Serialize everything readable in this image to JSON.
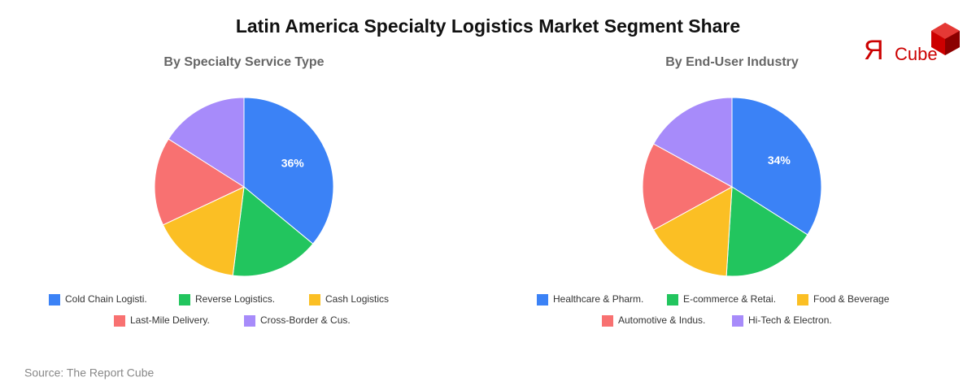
{
  "title": "Latin America Specialty Logistics Market Segment Share",
  "source": "Source: The Report Cube",
  "logo": {
    "mark": "Я",
    "text": "Cube"
  },
  "chart_data": [
    {
      "type": "pie",
      "title": "By Specialty Service Type",
      "categories": [
        "Cold Chain Logisti.",
        "Reverse Logistics.",
        "Cash Logistics",
        "Last-Mile Delivery.",
        "Cross-Border & Cus."
      ],
      "values": [
        36,
        16,
        16,
        16,
        16
      ],
      "value_labels": [
        "36%",
        null,
        null,
        null,
        null
      ],
      "colors": [
        "#3b82f6",
        "#22c55e",
        "#fbbf24",
        "#f87171",
        "#a78bfa"
      ],
      "legend": "bottom"
    },
    {
      "type": "pie",
      "title": "By End-User Industry",
      "categories": [
        "Healthcare & Pharm.",
        "E-commerce & Retai.",
        "Food & Beverage",
        "Automotive & Indus.",
        "Hi-Tech & Electron."
      ],
      "values": [
        34,
        17,
        16,
        16,
        17
      ],
      "value_labels": [
        "34%",
        null,
        null,
        null,
        null
      ],
      "colors": [
        "#3b82f6",
        "#22c55e",
        "#fbbf24",
        "#f87171",
        "#a78bfa"
      ],
      "legend": "bottom"
    }
  ]
}
